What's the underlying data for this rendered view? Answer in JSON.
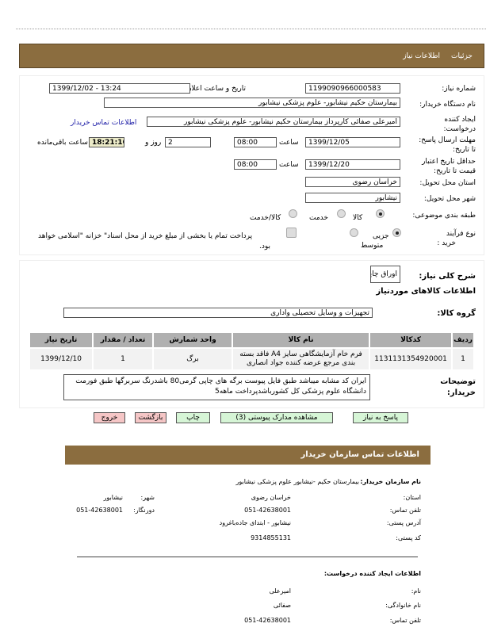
{
  "header": {
    "tab_details": "جزئیات",
    "tab_info": "اطلاعات نیاز"
  },
  "form": {
    "need_number_label": "شماره نیاز:",
    "need_number": "1199090966000583",
    "announce_label": "تاریخ و ساعت اعلان عمومی:",
    "announce_value": "1399/12/02 - 13:24",
    "buyer_label": "نام دستگاه خریدار:",
    "buyer": "بیمارستان حکیم نیشابور- علوم پزشکی نیشابور",
    "creator_label_1": "ایجاد کننده",
    "creator_label_2": "درخواست:",
    "creator": "امیرعلی صفائی کارپرداز بیمارستان حکیم نیشابور- علوم پزشکی نیشابور",
    "contact_link": "اطلاعات تماس خریدار",
    "deadline_label_1": "مهلت ارسال پاسخ:",
    "deadline_label_2": "تا تاریخ:",
    "deadline_date": "1399/12/05",
    "time_label": "ساعت",
    "deadline_time": "08:00",
    "days": "2",
    "days_label": "روز و",
    "remaining": "18:21:16",
    "remaining_label": "ساعت باقی‌مانده",
    "validity_label_1": "حداقل تاریخ اعتبار",
    "validity_label_2": "قیمت تا تاریخ:",
    "validity_date": "1399/12/20",
    "validity_time": "08:00",
    "province_label": "استان محل تحویل:",
    "province": "خراسان رضوی",
    "city_label": "شهر محل تحویل:",
    "city": "نیشابور",
    "category_label": "طبقه بندی موضوعی:",
    "cat_goods": "کالا",
    "cat_service": "خدمت",
    "cat_both": "کالا/خدمت",
    "category_selected": "کالا",
    "process_label_1": "نوع فرآیند",
    "process_label_2": "خرید :",
    "proc_partial": "جزیی",
    "proc_medium": "متوسط",
    "process_selected": "جزیی",
    "payment_text": "پرداخت تمام یا بخشی از مبلغ خرید از محل اسناد\" خزانه \"اسلامی خواهد",
    "payment_text_2": "بود.",
    "payment_checked": false
  },
  "items": {
    "summary_label": "شرح کلی نیاز:",
    "summary": "اوراق چاپی",
    "section_title": "اطلاعات کالاهای موردنیاز",
    "group_label": "گروه کالا:",
    "group": "تجهیزات و وسایل تحصیلی واداری",
    "columns": [
      "ردیف",
      "کدکالا",
      "نام کالا",
      "واحد شمارش",
      "تعداد / مقدار",
      "تاریخ نیاز"
    ],
    "rows": [
      {
        "row": "1",
        "code": "1131131354920001",
        "name": "فرم خام آزمایشگاهی سایز A4 فاقد بسته بندی مرجع عرضه کننده جواد انصاری",
        "unit": "برگ",
        "qty": "1",
        "date": "1399/12/10"
      }
    ],
    "notes_label_1": "توضیحات",
    "notes_label_2": "خریدار:",
    "notes": "ایران کد مشابه میباشد طبق فایل پیوست برگه های چاپی گرمی80 باشدرنگ سربرگها طبق فورمت دانشگاه علوم پزشکی کل کشورباشدپرداخت ماهه5"
  },
  "buttons": {
    "reply": "پاسخ به نیاز",
    "attachments": "مشاهده مدارک پیوستی (3)",
    "print": "چاپ",
    "back": "بازگشت",
    "exit": "خروج"
  },
  "contact": {
    "title": "اطلاعات تماس سازمان خریدار",
    "org_label": "نام سازمان خریدار:",
    "org": "بیمارستان حکیم -نیشابور علوم پزشکی نیشابور",
    "province_label": "استان:",
    "province": "خراسان رضوی",
    "city_label": "شهر:",
    "city": "نیشابور",
    "phone_label": "تلفن تماس:",
    "phone": "051-42638001",
    "fax_label": "دورنگار:",
    "fax": "051-42638001",
    "address_label": "آدرس پستی:",
    "address": "نیشابور - ابتدای جاده‌باغرود",
    "postal_label": "کد پستی:",
    "postal": "9314855131",
    "creator_title": "اطلاعات ایجاد کننده درخواست:",
    "first_name_label": "نام:",
    "first_name": "امیرعلی",
    "last_name_label": "نام خانوادگی:",
    "last_name": "صفائی",
    "creator_phone_label": "تلفن تماس:",
    "creator_phone": "051-42638001"
  },
  "colors": {
    "header_bar": "#8b6d3f",
    "green_button": "#d6f5d6",
    "red_button": "#f5c6c6",
    "highlight_box": "#ecebc8"
  }
}
